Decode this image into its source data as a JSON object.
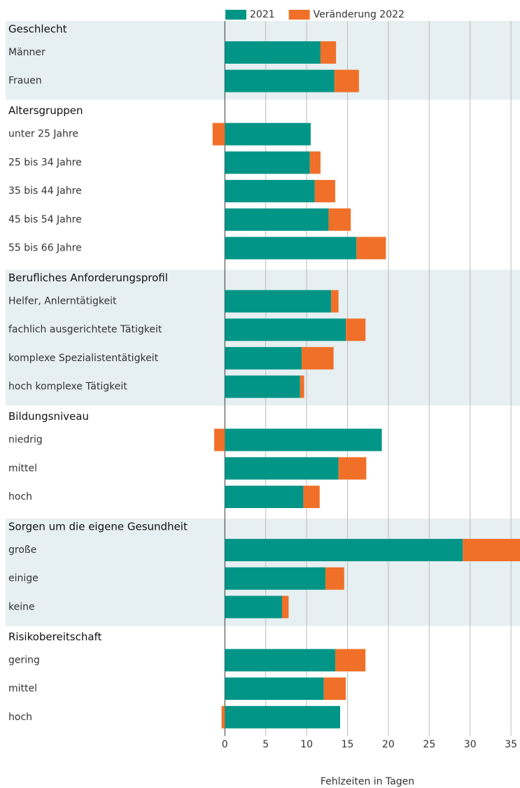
{
  "chart_data": {
    "type": "bar",
    "orientation": "horizontal",
    "stacked": true,
    "x_label": "Fehlzeiten in Tagen",
    "groups": [
      {
        "name": "Geschlecht",
        "categories": [
          "Männer",
          "Frauen"
        ]
      },
      {
        "name": "Altersgruppen",
        "categories": [
          "unter 25 Jahre",
          "25 bis 34 Jahre",
          "35 bis 44 Jahre",
          "45 bis 54 Jahre",
          "55 bis 66 Jahre"
        ]
      },
      {
        "name": "Berufliches Anforderungsprofil",
        "categories": [
          "Helfer, Anlerntätigkeit",
          "fachlich ausgerichtete Tätigkeit",
          "komplexe Spezialistentätigkeit",
          "hoch komplexe Tätigkeit"
        ]
      },
      {
        "name": "Bildungsniveau",
        "categories": [
          "niedrig",
          "mittel",
          "hoch"
        ]
      },
      {
        "name": "Sorgen um die eigene Gesundheit",
        "categories": [
          "große",
          "einige",
          "keine"
        ]
      },
      {
        "name": "Risikobereitschaft",
        "categories": [
          "gering",
          "mittel",
          "hoch"
        ]
      }
    ],
    "series": [
      {
        "name": "2021",
        "color": "#009587",
        "values": [
          11.7,
          13.4,
          10.5,
          10.4,
          11.0,
          12.7,
          16.1,
          13.0,
          14.8,
          9.4,
          9.2,
          19.2,
          13.9,
          9.6,
          29.1,
          12.3,
          7.0,
          13.5,
          12.1,
          14.1
        ]
      },
      {
        "name": "Veränderung 2022",
        "color": "#f07029",
        "values": [
          1.9,
          3.0,
          -1.5,
          1.3,
          2.5,
          2.7,
          3.6,
          0.9,
          2.4,
          3.9,
          0.5,
          -1.3,
          3.4,
          2.0,
          7.0,
          2.3,
          0.8,
          3.7,
          2.7,
          -0.4
        ]
      }
    ],
    "xlim": [
      -27.5,
      36.1
    ],
    "xticks": [
      0,
      5,
      10,
      15,
      20,
      25,
      30,
      35
    ],
    "grid": true
  }
}
